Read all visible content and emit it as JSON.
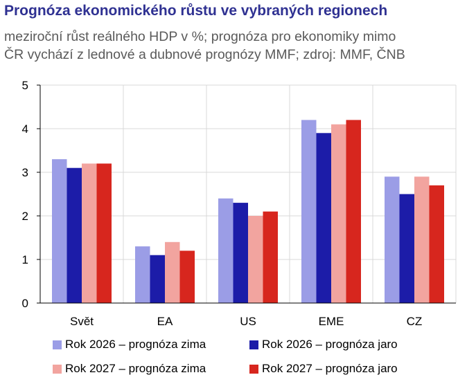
{
  "header": {
    "title": "Prognóza ekonomického růstu ve vybraných regionech",
    "subtitle_line1": "meziroční růst reálného HDP v %; prognóza pro ekonomiky mimo",
    "subtitle_line2": "ČR vychází z lednové a dubnové prognózy MMF; zdroj: MMF, ČNB"
  },
  "chart_data": {
    "type": "bar",
    "categories": [
      "Svět",
      "EA",
      "US",
      "EME",
      "CZ"
    ],
    "series": [
      {
        "name": "Rok 2026 – prognóza zima",
        "color": "#9b9de6",
        "values": [
          3.3,
          1.3,
          2.4,
          4.2,
          2.9
        ]
      },
      {
        "name": "Rok 2026 – prognóza jaro",
        "color": "#1c1ca8",
        "values": [
          3.1,
          1.1,
          2.3,
          3.9,
          2.5
        ]
      },
      {
        "name": "Rok 2027 – prognóza zima",
        "color": "#f2a49f",
        "values": [
          3.2,
          1.4,
          2.0,
          4.1,
          2.9
        ]
      },
      {
        "name": "Rok 2027 – prognóza jaro",
        "color": "#d7261e",
        "values": [
          3.2,
          1.2,
          2.1,
          4.2,
          2.7
        ]
      }
    ],
    "ylim": [
      0,
      5
    ],
    "yticks": [
      "0",
      "1",
      "2",
      "3",
      "4",
      "5"
    ],
    "grid": true,
    "legend_position": "bottom"
  }
}
